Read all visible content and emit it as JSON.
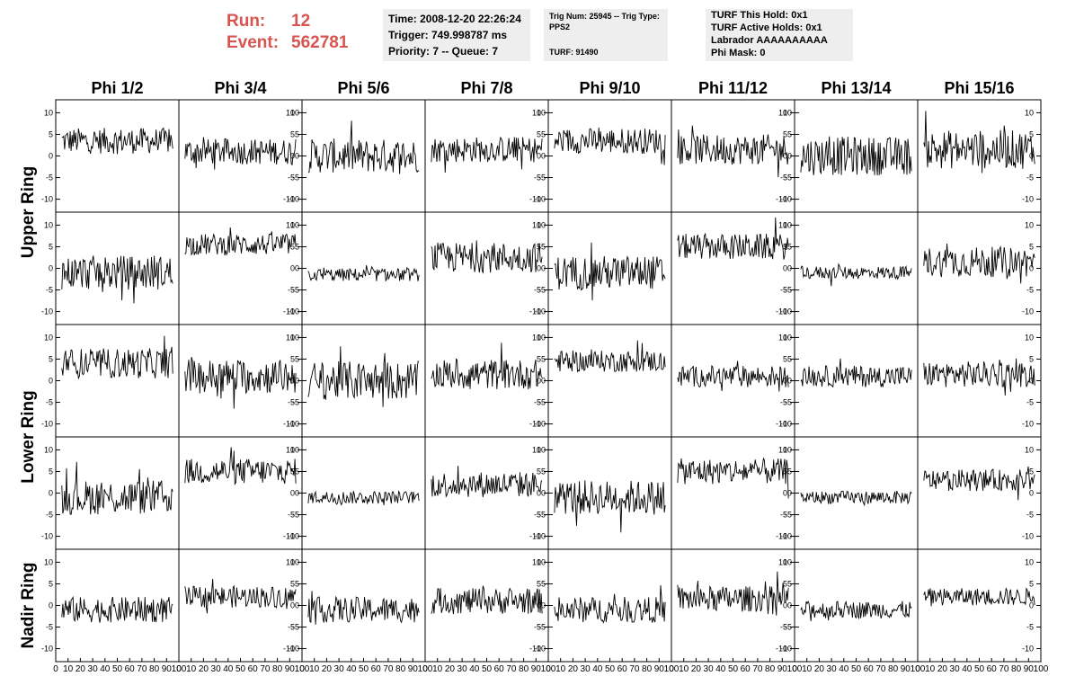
{
  "header": {
    "run_label": "Run:",
    "run_value": "12",
    "event_label": "Event:",
    "event_value": "562781"
  },
  "info_panel_1": {
    "time": "Time: 2008-12-20 22:26:24",
    "trigger": "Trigger: 749.998787 ms",
    "priority": "Priority: 7 -- Queue: 7"
  },
  "info_panel_2": {
    "trig": "Trig Num: 25945 -- Trig Type: PPS2",
    "turf": "TURF: 91490"
  },
  "info_panel_3": {
    "this_hold": "TURF This Hold: 0x1",
    "active_holds": "TURF Active Holds: 0x1",
    "labrador": "Labrador AAAAAAAAAA",
    "phi_mask": "Phi Mask: 0"
  },
  "chart_data": {
    "type": "line",
    "columns": [
      "Phi 1/2",
      "Phi 3/4",
      "Phi 5/6",
      "Phi 7/8",
      "Phi 9/10",
      "Phi 11/12",
      "Phi 13/14",
      "Phi 15/16"
    ],
    "rows": [
      "Upper Ring",
      "Lower Ring",
      "Nadir Ring"
    ],
    "xlim": [
      0,
      100
    ],
    "ylim": [
      -13,
      13
    ],
    "x_ticks": [
      "0",
      "10",
      "20",
      "30",
      "40",
      "50",
      "60",
      "70",
      "80",
      "90",
      "100"
    ],
    "y_ticks": [
      "10",
      "5",
      "0",
      "-5",
      "-10"
    ],
    "panel_rows": [
      {
        "ring": "Upper Ring",
        "baselines": [
          3.5,
          1,
          0,
          1.5,
          3.5,
          1.5,
          0,
          1.5
        ],
        "amplitudes": [
          3,
          3,
          4,
          3,
          3,
          3.5,
          4.5,
          4.5
        ]
      },
      {
        "ring": "Upper Ring",
        "baselines": [
          -1,
          5.5,
          -1.5,
          2.5,
          -1,
          5,
          -1,
          1.5
        ],
        "amplitudes": [
          4,
          2.5,
          1.5,
          3.5,
          4,
          3,
          1.5,
          3.5
        ]
      },
      {
        "ring": "Lower Ring",
        "baselines": [
          4,
          1,
          0,
          1.5,
          4.5,
          1,
          1,
          1.5
        ],
        "amplitudes": [
          3.5,
          4,
          4.5,
          3.5,
          2.5,
          2.5,
          2.5,
          3
        ]
      },
      {
        "ring": "Lower Ring",
        "baselines": [
          -1,
          5,
          -1,
          2,
          -1,
          5,
          -1,
          3
        ],
        "amplitudes": [
          4,
          3,
          1.5,
          3,
          4,
          3,
          1.5,
          2.5
        ]
      },
      {
        "ring": "Nadir Ring",
        "baselines": [
          -1,
          2,
          -1,
          1,
          -1,
          1.5,
          -1,
          2
        ],
        "amplitudes": [
          3,
          2.5,
          3,
          3,
          3,
          3,
          2,
          2
        ]
      }
    ]
  }
}
